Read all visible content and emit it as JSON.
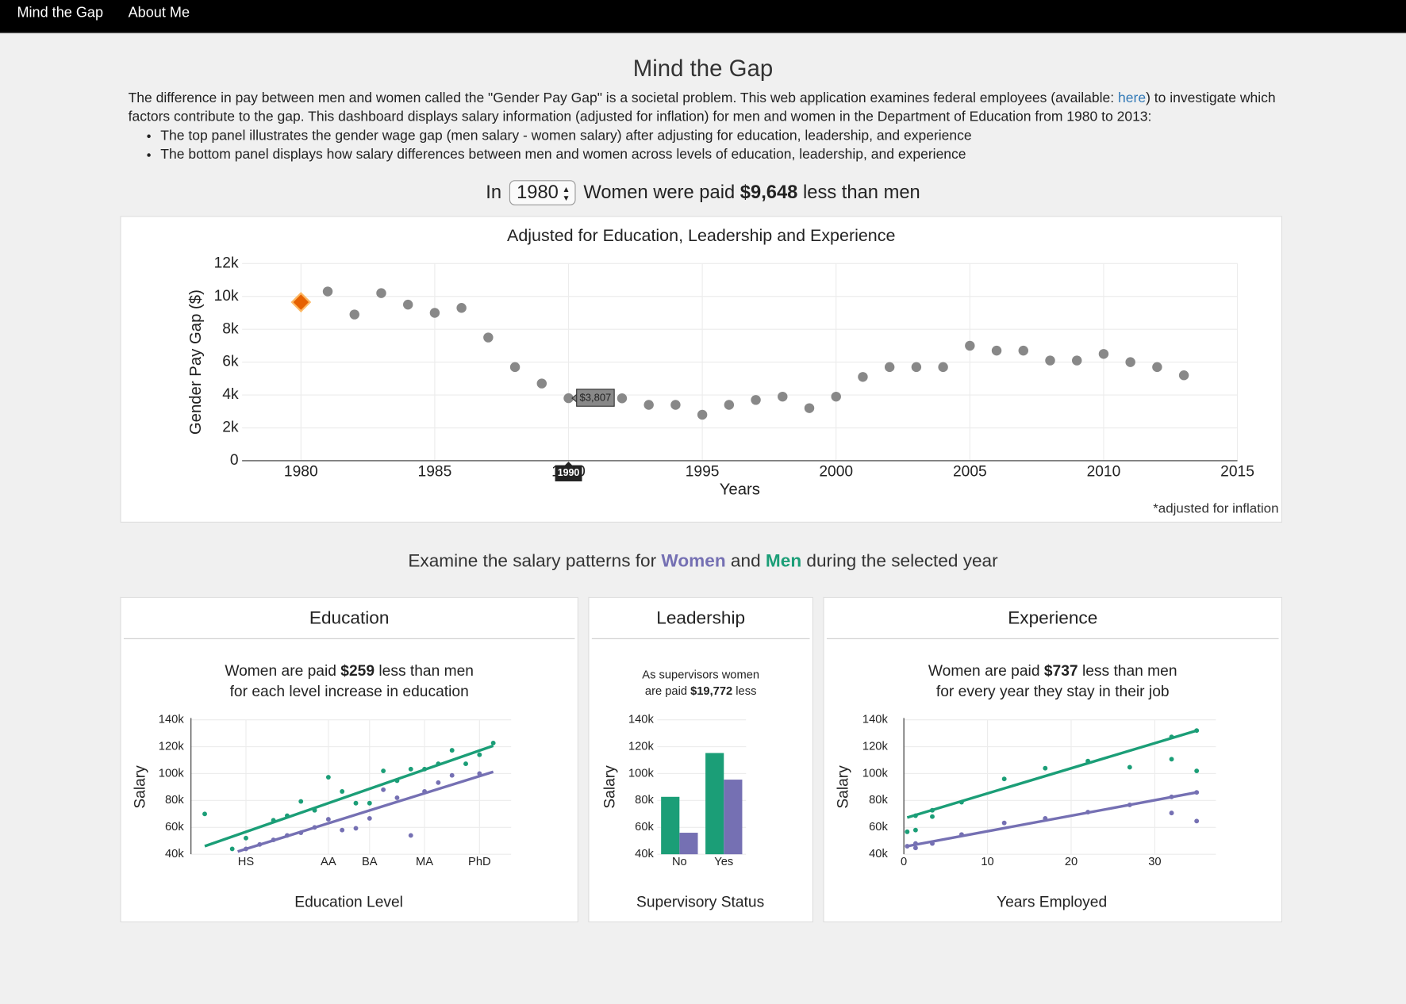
{
  "nav": {
    "items": [
      "Mind the Gap",
      "About Me"
    ]
  },
  "header": {
    "title": "Mind the Gap",
    "intro_before": "The difference in pay between men and women called the \"Gender Pay Gap\" is a societal problem. This web application examines federal employees (available: ",
    "intro_link": "here",
    "intro_after": ") to investigate which factors contribute to the gap. This dashboard displays salary information (adjusted for inflation) for men and women in the Department of Education from 1980 to 2013:",
    "bullets": [
      "The top panel illustrates the gender wage gap (men salary - women salary) after adjusting for education, leadership, and experience",
      "The bottom panel displays how salary differences between men and women across levels of education, leadership, and experience"
    ]
  },
  "headline": {
    "prefix": "In",
    "year": 1980,
    "before": "Women were paid",
    "amount": "$9,648",
    "after": "less than men"
  },
  "section": {
    "before": "Examine the salary patterns for",
    "middle": "and",
    "after": "during the selected year"
  },
  "chart_data": [
    {
      "type": "scatter",
      "title": "Adjusted for Education, Leadership and Experience",
      "x_label": "Years",
      "y_label": "Gender Pay Gap ($)",
      "note": "*adjusted for inflation",
      "x": [
        1980,
        1981,
        1982,
        1983,
        1984,
        1985,
        1986,
        1987,
        1988,
        1989,
        1990,
        1991,
        1992,
        1993,
        1994,
        1995,
        1996,
        1997,
        1998,
        1999,
        2000,
        2001,
        2002,
        2003,
        2004,
        2005,
        2006,
        2007,
        2008,
        2009,
        2010,
        2011,
        2012,
        2013
      ],
      "values": [
        9648,
        10300,
        8900,
        10200,
        9500,
        9000,
        9300,
        7500,
        5700,
        4700,
        3807,
        3800,
        3800,
        3400,
        3400,
        2800,
        3400,
        3700,
        3900,
        3200,
        3900,
        5100,
        5700,
        5700,
        5700,
        7000,
        6700,
        6700,
        6100,
        6100,
        6500,
        6000,
        5700,
        5200
      ],
      "color": "#888888",
      "selected_color": "#e66101",
      "tooltip": {
        "x": 1990,
        "value": 3807,
        "label": "$3,807"
      },
      "xlim": [
        1977.8,
        2015
      ],
      "xticks": [
        1980,
        1985,
        1990,
        1995,
        2000,
        2005,
        2010,
        2015
      ],
      "ylim": [
        0,
        12000
      ],
      "yticks": [
        0,
        {
          "value": 2000,
          "label": "2k"
        },
        {
          "value": 4000,
          "label": "4k"
        },
        {
          "value": 6000,
          "label": "6k"
        },
        {
          "value": 8000,
          "label": "8k"
        },
        {
          "value": 10000,
          "label": "10k"
        },
        {
          "value": 12000,
          "label": "12k"
        }
      ],
      "grid": true
    },
    {
      "type": "scatter",
      "title": "Education",
      "subtitle": [
        [
          {
            "text": "Women are paid "
          },
          {
            "text": "$259",
            "bold": true
          },
          {
            "text": " less than men"
          }
        ],
        [
          {
            "text": "for each level increase in education"
          }
        ]
      ],
      "x_label": "Education Level",
      "y_label": "Salary",
      "series": [
        {
          "name": "Women",
          "color": "#7570b3",
          "x": [
            4,
            5,
            6,
            7,
            8,
            9,
            10,
            11,
            12,
            13,
            14,
            15,
            16,
            17,
            18,
            19,
            21
          ],
          "values": [
            44000,
            47300,
            50700,
            54000,
            56000,
            60000,
            66000,
            58000,
            59300,
            66700,
            88000,
            82000,
            54000,
            86700,
            93300,
            98700,
            100000
          ],
          "fit": {
            "x": [
              3.4,
              22
            ],
            "values": [
              42000,
              101300
            ]
          }
        },
        {
          "name": "Men",
          "color": "#1b9e77",
          "x": [
            1,
            3,
            4,
            6,
            7,
            8,
            9,
            10,
            11,
            12,
            13,
            14,
            15,
            16,
            17,
            18,
            19,
            20,
            21,
            22
          ],
          "values": [
            70000,
            44000,
            52000,
            65300,
            68700,
            79300,
            72700,
            97300,
            86700,
            78000,
            78000,
            102000,
            94700,
            103300,
            103300,
            107300,
            117300,
            107300,
            114000,
            122700
          ],
          "fit": {
            "x": [
              1,
              22
            ],
            "values": [
              46000,
              120700
            ]
          }
        }
      ],
      "xlim": [
        0,
        23.3
      ],
      "xticks": [
        {
          "value": 4,
          "label": "HS"
        },
        {
          "value": 10,
          "label": "AA"
        },
        {
          "value": 13,
          "label": "BA"
        },
        {
          "value": 17,
          "label": "MA"
        },
        {
          "value": 21,
          "label": "PhD"
        }
      ],
      "ylim": [
        40000,
        140000
      ],
      "yticks": [
        {
          "value": 40000,
          "label": "40k"
        },
        {
          "value": 60000,
          "label": "60k"
        },
        {
          "value": 80000,
          "label": "80k"
        },
        {
          "value": 100000,
          "label": "100k"
        },
        {
          "value": 120000,
          "label": "120k"
        },
        {
          "value": 140000,
          "label": "140k"
        }
      ],
      "grid": true
    },
    {
      "type": "bar",
      "title": "Leadership",
      "subtitle": [
        [
          {
            "text": "As supervisors women"
          }
        ],
        [
          {
            "text": "are paid "
          },
          {
            "text": "$19,772",
            "bold": true
          },
          {
            "text": " less"
          }
        ]
      ],
      "x_label": "Supervisory Status",
      "y_label": "Salary",
      "categories": [
        "No",
        "Yes"
      ],
      "series": [
        {
          "name": "Men",
          "color": "#1b9e77",
          "values": [
            82700,
            115300
          ]
        },
        {
          "name": "Women",
          "color": "#7570b3",
          "values": [
            56000,
            95500
          ]
        }
      ],
      "ylim": [
        40000,
        140000
      ],
      "yticks": [
        {
          "value": 40000,
          "label": "40k"
        },
        {
          "value": 60000,
          "label": "60k"
        },
        {
          "value": 80000,
          "label": "80k"
        },
        {
          "value": 100000,
          "label": "100k"
        },
        {
          "value": 120000,
          "label": "120k"
        },
        {
          "value": 140000,
          "label": "140k"
        }
      ],
      "grid": true
    },
    {
      "type": "scatter",
      "title": "Experience",
      "subtitle": [
        [
          {
            "text": "Women are paid "
          },
          {
            "text": "$737",
            "bold": true
          },
          {
            "text": " less than men"
          }
        ],
        [
          {
            "text": "for every year they stay in their job"
          }
        ]
      ],
      "x_label": "Years Employed",
      "y_label": "Salary",
      "series": [
        {
          "name": "Women",
          "color": "#7570b3",
          "x": [
            0.4,
            1.4,
            1.4,
            3.4,
            6.9,
            12,
            16.9,
            22,
            27,
            32,
            32,
            35,
            35
          ],
          "values": [
            46000,
            44700,
            48000,
            48000,
            54700,
            63300,
            66700,
            71300,
            76700,
            70700,
            82700,
            64700,
            86000
          ],
          "fit": {
            "x": [
              0.4,
              35
            ],
            "values": [
              46000,
              86000
            ]
          }
        },
        {
          "name": "Men",
          "color": "#1b9e77",
          "x": [
            0.4,
            1.4,
            1.4,
            3.4,
            3.4,
            6.9,
            12,
            16.9,
            22,
            27,
            32,
            32,
            35,
            35
          ],
          "values": [
            56700,
            68700,
            58000,
            68000,
            72700,
            78700,
            96000,
            104000,
            109300,
            104700,
            127300,
            110700,
            102000,
            132000
          ],
          "fit": {
            "x": [
              0.4,
              35
            ],
            "values": [
              67300,
              132000
            ]
          }
        }
      ],
      "xlim": [
        0,
        37.3
      ],
      "xticks": [
        0,
        10,
        20,
        30
      ],
      "ylim": [
        40000,
        140000
      ],
      "yticks": [
        {
          "value": 40000,
          "label": "40k"
        },
        {
          "value": 60000,
          "label": "60k"
        },
        {
          "value": 80000,
          "label": "80k"
        },
        {
          "value": 100000,
          "label": "100k"
        },
        {
          "value": 120000,
          "label": "120k"
        },
        {
          "value": 140000,
          "label": "140k"
        }
      ],
      "grid": true
    }
  ]
}
